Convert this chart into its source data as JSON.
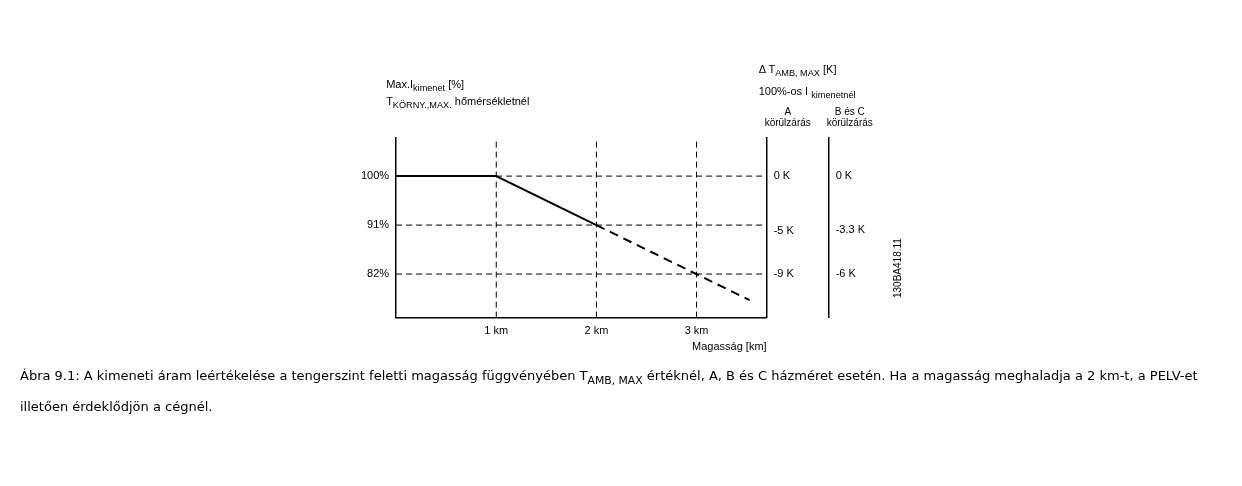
{
  "chart_data": {
    "type": "line",
    "ylabel": "Max.I$_{kimenet}$ [%]\nT$_{KÖRNY.,MAX.}$ hőmérsékletnél",
    "xlabel": "Magasság [km]",
    "y2label": "A\nkörülzárás",
    "y3label": "B és C\nkörülzárás",
    "series": [
      {
        "type": "line",
        "color": "#000000",
        "line_style": "solid",
        "x": [
          0,
          1,
          2
        ],
        "values": [
          100,
          100,
          91
        ]
      },
      {
        "type": "line",
        "color": "#000000",
        "line_style": "dashed",
        "x": [
          2,
          3.53
        ],
        "values": [
          91,
          77.2
        ]
      }
    ],
    "xlim": [
      0,
      3.7
    ],
    "xticks": [
      {
        "value": 1,
        "label": "1 km"
      },
      {
        "value": 2,
        "label": "2 km"
      },
      {
        "value": 3,
        "label": "3 km"
      }
    ],
    "ylim": [
      74,
      107
    ],
    "yticks": [
      {
        "value": 82,
        "label": "82%"
      },
      {
        "value": 91,
        "label": "91%"
      },
      {
        "value": 100,
        "label": "100%"
      }
    ],
    "y2lim": [
      -13,
      3.5
    ],
    "y2ticks": [
      {
        "value": -9,
        "label": "-9 K"
      },
      {
        "value": -5,
        "label": "-5 K"
      },
      {
        "value": 0,
        "label": "0 K"
      }
    ],
    "y3lim": [
      -8.67,
      2.33
    ],
    "y3ticks": [
      {
        "value": -6,
        "label": "-6 K"
      },
      {
        "value": -3.3,
        "label": "-3.3 K"
      },
      {
        "value": 0,
        "label": "0 K"
      }
    ],
    "grid": true,
    "legend": false,
    "annotations": [
      "Δ T$_{AMB, MAX}$ [K]\n100%-os I $_{kimenetnél}$",
      "Ábra 9.1: A kimeneti áram leértékelése a tengerszint feletti magasság függvényében T$_{AMB, MAX}$ értéknél, A, B és C házméret esetén. Ha a magasság meghaladja a 2 km-t, a PELV-et illetően érdeklődjön a cégnél.",
      "130BA418.11"
    ]
  }
}
